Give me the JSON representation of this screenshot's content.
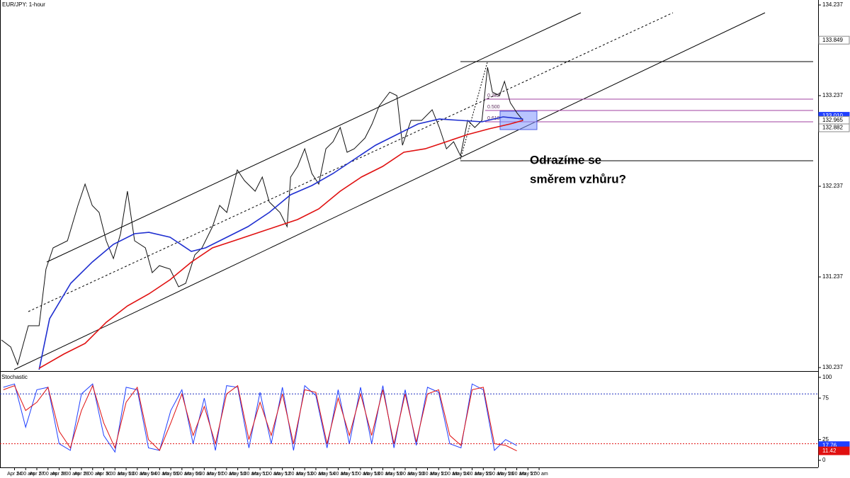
{
  "chart_data": [
    {
      "type": "line",
      "title": "EUR/JPY: 1-hour",
      "annotation": [
        "Odrazíme se",
        "směrem vzhůru?"
      ],
      "fib_labels": [
        "0.382",
        "0.500",
        "0.618"
      ],
      "xlim": [
        -0.65,
        36.0
      ],
      "ylim": [
        130.214,
        134.292
      ],
      "yticks": [
        134.237,
        133.237,
        132.237,
        131.237,
        130.237
      ],
      "xticks": [
        {
          "value": 0,
          "label": "Apr 24"
        },
        {
          "value": 0.5,
          "label": "5:00 am"
        },
        {
          "value": 1,
          "label": "Apr 27"
        },
        {
          "value": 1.5,
          "label": "5:00 am"
        },
        {
          "value": 2,
          "label": "Apr 28"
        },
        {
          "value": 2.5,
          "label": "5:00 am"
        },
        {
          "value": 3,
          "label": "Apr 29"
        },
        {
          "value": 3.5,
          "label": "5:00 am"
        },
        {
          "value": 4,
          "label": "Apr 30"
        },
        {
          "value": 4.5,
          "label": "5:00 am"
        },
        {
          "value": 5,
          "label": "May 03"
        },
        {
          "value": 5.5,
          "label": "5:00 am"
        },
        {
          "value": 6,
          "label": "May 04"
        },
        {
          "value": 6.5,
          "label": "5:00 am"
        },
        {
          "value": 7,
          "label": "May 05"
        },
        {
          "value": 7.5,
          "label": "5:00 am"
        },
        {
          "value": 8,
          "label": "May 06"
        },
        {
          "value": 8.5,
          "label": "5:00 am"
        },
        {
          "value": 9,
          "label": "May 07"
        },
        {
          "value": 9.5,
          "label": "5:00 am"
        },
        {
          "value": 10,
          "label": "May 10"
        },
        {
          "value": 10.5,
          "label": "5:00 am"
        },
        {
          "value": 11,
          "label": "May 11"
        },
        {
          "value": 11.5,
          "label": "5:00 am"
        },
        {
          "value": 12,
          "label": "May 12"
        },
        {
          "value": 12.5,
          "label": "5:00 am"
        },
        {
          "value": 13,
          "label": "May 13"
        },
        {
          "value": 13.5,
          "label": "5:00 am"
        },
        {
          "value": 14,
          "label": "May 14"
        },
        {
          "value": 14.5,
          "label": "5:00 am"
        },
        {
          "value": 15,
          "label": "May 17"
        },
        {
          "value": 15.5,
          "label": "5:00 am"
        },
        {
          "value": 16,
          "label": "May 18"
        },
        {
          "value": 16.5,
          "label": "5:00 am"
        },
        {
          "value": 17,
          "label": "May 19"
        },
        {
          "value": 17.5,
          "label": "5:00 am"
        },
        {
          "value": 18,
          "label": "May 20"
        },
        {
          "value": 18.5,
          "label": "5:00 am"
        },
        {
          "value": 19,
          "label": "May 21"
        },
        {
          "value": 19.5,
          "label": "5:00 am"
        },
        {
          "value": 20,
          "label": "May 24"
        },
        {
          "value": 20.5,
          "label": "5:00 am"
        },
        {
          "value": 21,
          "label": "May 25"
        },
        {
          "value": 21.5,
          "label": "5:00 am"
        },
        {
          "value": 22,
          "label": "May 26"
        },
        {
          "value": 22.5,
          "label": "5:00 am"
        },
        {
          "value": 23,
          "label": "May 27"
        },
        {
          "value": 23.5,
          "label": "5:00 am"
        }
      ],
      "price_markers": [
        {
          "value": 133.849,
          "color": "#ffffff"
        },
        {
          "value": 133.01,
          "label": "133.010",
          "color": "#1f3fff"
        },
        {
          "value": 132.965,
          "color": "#ffffff"
        },
        {
          "value": 132.882,
          "color": "#ffffff"
        }
      ],
      "series": [
        {
          "color": "#111111",
          "x": [
            -0.59,
            -0.17,
            0.14,
            0.62,
            1.1,
            1.41,
            1.73,
            2.37,
            2.84,
            3.16,
            3.48,
            3.79,
            4.11,
            4.43,
            4.75,
            5.06,
            5.38,
            5.86,
            6.17,
            6.49,
            6.97,
            7.35,
            7.67,
            8.08,
            8.4,
            8.87,
            9.19,
            9.51,
            9.98,
            10.3,
            10.78,
            11.1,
            11.41,
            11.89,
            12.21,
            12.37,
            12.68,
            13.0,
            13.32,
            13.63,
            13.95,
            14.27,
            14.59,
            14.9,
            15.22,
            15.7,
            16.02,
            16.33,
            16.81,
            17.13,
            17.38,
            17.76,
            18.24,
            18.71,
            19.03,
            19.35,
            19.67,
            19.98,
            20.3,
            20.62,
            20.94,
            21.19,
            21.41,
            21.73,
            21.95,
            22.21,
            22.52,
            22.78
          ],
          "values": [
            130.542,
            130.464,
            130.269,
            130.698,
            130.698,
            131.323,
            131.558,
            131.636,
            132.026,
            132.261,
            132.026,
            131.948,
            131.636,
            131.44,
            131.714,
            132.183,
            131.636,
            131.558,
            131.284,
            131.362,
            131.323,
            131.128,
            131.167,
            131.48,
            131.558,
            131.792,
            132.026,
            131.948,
            132.417,
            132.3,
            132.183,
            132.339,
            132.065,
            131.948,
            131.792,
            132.339,
            132.456,
            132.651,
            132.378,
            132.261,
            132.651,
            132.729,
            132.886,
            132.612,
            132.651,
            132.769,
            132.925,
            133.12,
            133.276,
            133.237,
            132.69,
            132.964,
            132.964,
            133.081,
            132.886,
            132.651,
            132.729,
            132.573,
            132.964,
            132.886,
            132.964,
            133.55,
            133.276,
            133.237,
            133.394,
            133.159,
            133.042,
            132.965
          ]
        },
        {
          "color": "#1f2fd0",
          "x": [
            1.1,
            1.57,
            2.52,
            3.48,
            4.43,
            5.38,
            6.02,
            6.97,
            7.92,
            8.56,
            9.51,
            10.46,
            11.41,
            12.37,
            13.32,
            14.27,
            15.22,
            16.17,
            17.13,
            18.08,
            19.03,
            19.98,
            20.94,
            21.89,
            22.78
          ],
          "values": [
            130.214,
            130.776,
            131.167,
            131.401,
            131.597,
            131.714,
            131.729,
            131.675,
            131.519,
            131.558,
            131.675,
            131.792,
            131.948,
            132.144,
            132.245,
            132.378,
            132.534,
            132.69,
            132.808,
            132.925,
            132.979,
            132.964,
            132.948,
            133.003,
            132.979
          ]
        },
        {
          "color": "#e01010",
          "x": [
            1.1,
            2.21,
            3.16,
            4.11,
            5.06,
            6.02,
            6.97,
            7.92,
            8.87,
            9.83,
            10.78,
            11.73,
            12.68,
            13.63,
            14.59,
            15.54,
            16.49,
            17.44,
            18.4,
            19.35,
            20.3,
            21.25,
            22.21,
            22.78
          ],
          "values": [
            130.229,
            130.386,
            130.503,
            130.737,
            130.917,
            131.05,
            131.206,
            131.401,
            131.558,
            131.636,
            131.714,
            131.792,
            131.87,
            131.987,
            132.183,
            132.339,
            132.456,
            132.612,
            132.651,
            132.729,
            132.808,
            132.87,
            132.925,
            132.964
          ]
        }
      ]
    },
    {
      "type": "line",
      "title": "Stochastic",
      "xlim": [
        -0.65,
        36.0
      ],
      "ylim": [
        -8.5,
        105
      ],
      "yticks": [
        100,
        75,
        25,
        0
      ],
      "levels": [
        80,
        20
      ],
      "markers": [
        {
          "value": 17.76,
          "color": "#1f3fff"
        },
        {
          "value": 11.42,
          "color": "#e01010"
        }
      ],
      "series": [
        {
          "color": "#2040ff",
          "x": [
            -0.5,
            0,
            0.5,
            1,
            1.5,
            2,
            2.5,
            3,
            3.5,
            4,
            4.5,
            5,
            5.5,
            6,
            6.5,
            7,
            7.5,
            8,
            8.5,
            9,
            9.5,
            10,
            10.5,
            11,
            11.5,
            12,
            12.5,
            13,
            13.5,
            14,
            14.5,
            15,
            15.5,
            16,
            16.5,
            17,
            17.5,
            18,
            18.5,
            19,
            19.5,
            20,
            20.5,
            21,
            21.5,
            22,
            22.5
          ],
          "values": [
            88,
            92,
            40,
            85,
            88,
            20,
            12,
            80,
            92,
            30,
            10,
            88,
            85,
            15,
            12,
            60,
            85,
            20,
            75,
            12,
            90,
            88,
            15,
            82,
            20,
            88,
            12,
            90,
            78,
            15,
            85,
            20,
            88,
            20,
            90,
            15,
            85,
            18,
            88,
            82,
            20,
            15,
            92,
            85,
            12,
            25,
            17.76
          ]
        },
        {
          "color": "#e01010",
          "x": [
            -0.5,
            0,
            0.5,
            1,
            1.5,
            2,
            2.5,
            3,
            3.5,
            4,
            4.5,
            5,
            5.5,
            6,
            6.5,
            7,
            7.5,
            8,
            8.5,
            9,
            9.5,
            10,
            10.5,
            11,
            11.5,
            12,
            12.5,
            13,
            13.5,
            14,
            14.5,
            15,
            15.5,
            16,
            16.5,
            17,
            17.5,
            18,
            18.5,
            19,
            19.5,
            20,
            20.5,
            21,
            21.5,
            22,
            22.5
          ],
          "values": [
            85,
            90,
            60,
            70,
            88,
            35,
            15,
            60,
            90,
            45,
            15,
            70,
            88,
            25,
            12,
            45,
            80,
            30,
            65,
            20,
            80,
            90,
            25,
            70,
            30,
            80,
            20,
            85,
            82,
            20,
            75,
            30,
            80,
            30,
            85,
            20,
            80,
            22,
            80,
            85,
            30,
            18,
            85,
            88,
            20,
            18,
            11.42
          ]
        }
      ]
    }
  ]
}
